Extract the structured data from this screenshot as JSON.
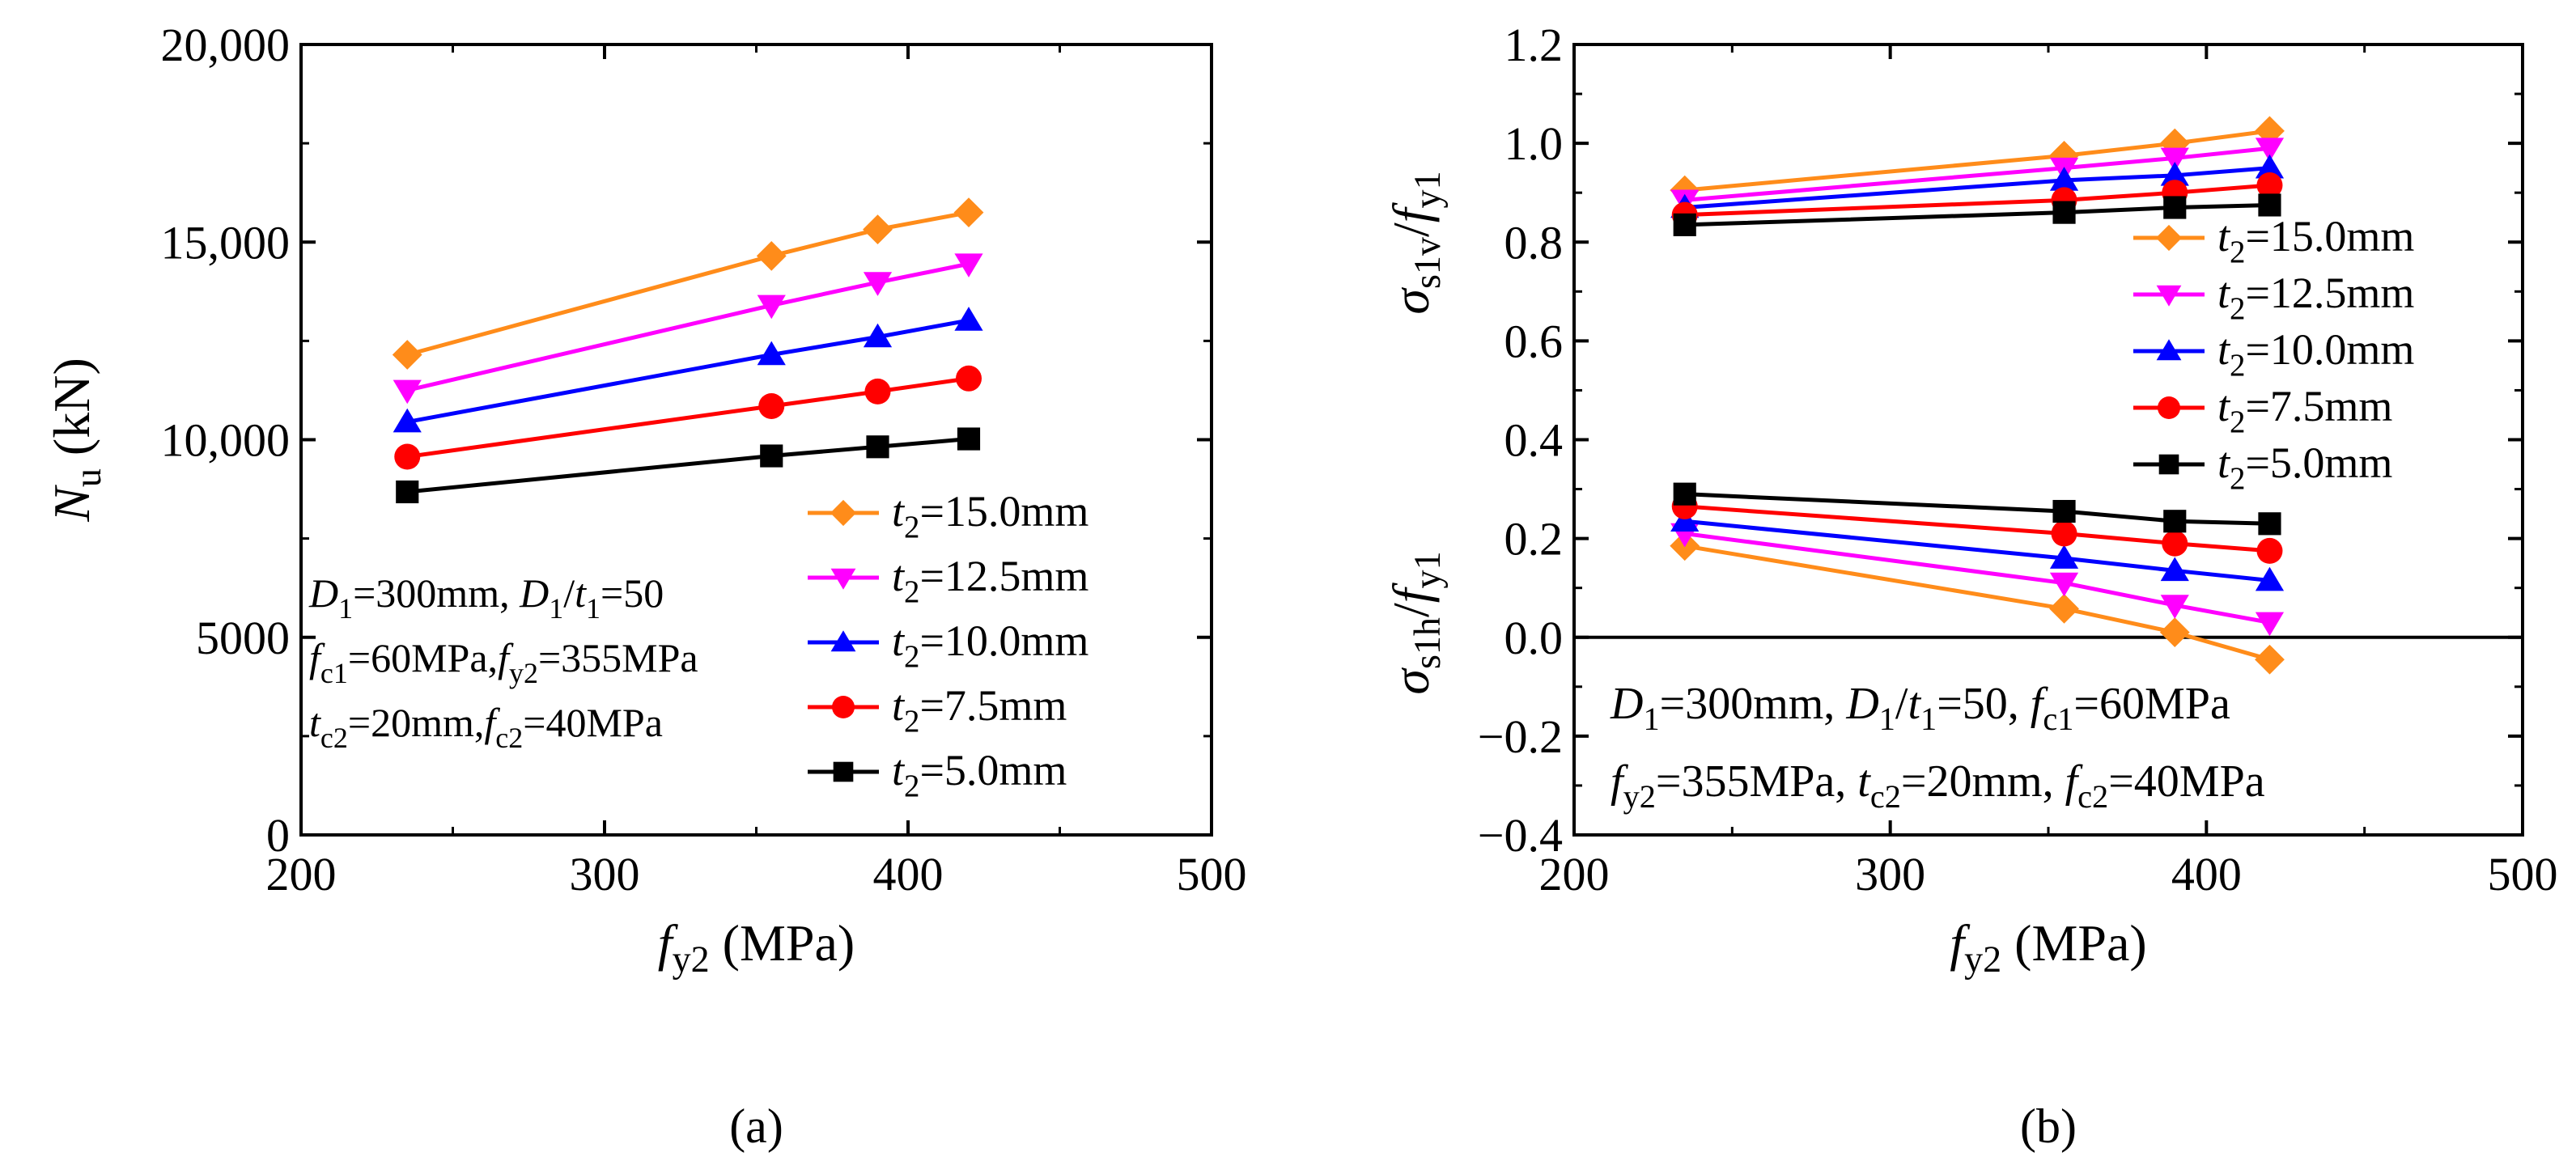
{
  "chart_data": [
    {
      "type": "line",
      "panel_label": "(a)",
      "x": [
        235,
        355,
        390,
        420
      ],
      "xlim": [
        200,
        500
      ],
      "ylim": [
        0,
        20000
      ],
      "x_ticks": [
        "200",
        "300",
        "400",
        "500"
      ],
      "y_ticks": [
        "0",
        "5000",
        "10,000",
        "15,000",
        "20,000"
      ],
      "xlabel": {
        "main": "f",
        "sub": "y2",
        "unit": " (MPa)"
      },
      "ylabel": {
        "main": "N",
        "sub": "u",
        "unit": " (kN)"
      },
      "legend_position": "bottom-right",
      "series": [
        {
          "name": "15.0mm",
          "t_sub": "2",
          "color": "#FF8C1A",
          "marker": "diamond",
          "values": [
            12150,
            14650,
            15320,
            15750
          ]
        },
        {
          "name": "12.5mm",
          "t_sub": "2",
          "color": "#FF00FF",
          "marker": "triangle-down",
          "values": [
            11250,
            13400,
            13980,
            14450
          ]
        },
        {
          "name": "10.0mm",
          "t_sub": "2",
          "color": "#0000FF",
          "marker": "triangle-up",
          "values": [
            10450,
            12150,
            12600,
            13020
          ]
        },
        {
          "name": "7.5mm",
          "t_sub": "2",
          "color": "#FF0000",
          "marker": "circle",
          "values": [
            9570,
            10850,
            11220,
            11550
          ]
        },
        {
          "name": "5.0mm",
          "t_sub": "2",
          "color": "#000000",
          "marker": "square",
          "values": [
            8680,
            9590,
            9820,
            10020
          ]
        }
      ],
      "annotation_lines": [
        [
          {
            "t": "D",
            "it": true
          },
          {
            "t": "1",
            "sub": true
          },
          {
            "t": "=300mm, "
          },
          {
            "t": "D",
            "it": true
          },
          {
            "t": "1",
            "sub": true
          },
          {
            "t": "/"
          },
          {
            "t": "t",
            "it": true
          },
          {
            "t": "1",
            "sub": true
          },
          {
            "t": "=50"
          }
        ],
        [
          {
            "t": "f",
            "it": true
          },
          {
            "t": "c1",
            "sub": true
          },
          {
            "t": "=60MPa,"
          },
          {
            "t": "f",
            "it": true
          },
          {
            "t": "y2",
            "sub": true
          },
          {
            "t": "=355MPa"
          }
        ],
        [
          {
            "t": "t",
            "it": true
          },
          {
            "t": "c2",
            "sub": true
          },
          {
            "t": "=20mm,"
          },
          {
            "t": "f",
            "it": true
          },
          {
            "t": "c2",
            "sub": true
          },
          {
            "t": "=40MPa"
          }
        ]
      ]
    },
    {
      "type": "line",
      "panel_label": "(b)",
      "x": [
        235,
        355,
        390,
        420
      ],
      "xlim": [
        200,
        500
      ],
      "ylim": [
        -0.4,
        1.2
      ],
      "x_ticks": [
        "200",
        "300",
        "400",
        "500"
      ],
      "y_ticks": [
        "−0.4",
        "−0.2",
        "0.0",
        "0.2",
        "0.4",
        "0.6",
        "0.8",
        "1.0",
        "1.2"
      ],
      "zero_line": 0,
      "xlabel": {
        "main": "f",
        "sub": "y2",
        "unit": " (MPa)"
      },
      "ylabel_upper": {
        "main": "σ",
        "sub": "s1v",
        "slash": "/",
        "den": "f",
        "den_sub": "y1"
      },
      "ylabel_lower": {
        "main": "σ",
        "sub": "s1h",
        "slash": "/",
        "den": "f",
        "den_sub": "y1"
      },
      "legend_position": "center-right",
      "series": [
        {
          "name": "15.0mm",
          "t_sub": "2",
          "color": "#FF8C1A",
          "marker": "diamond",
          "values_vertical": [
            0.905,
            0.975,
            1.0,
            1.025
          ],
          "values_hoop": [
            0.185,
            0.058,
            0.01,
            -0.045
          ]
        },
        {
          "name": "12.5mm",
          "t_sub": "2",
          "color": "#FF00FF",
          "marker": "triangle-down",
          "values_vertical": [
            0.885,
            0.95,
            0.97,
            0.99
          ],
          "values_hoop": [
            0.21,
            0.11,
            0.065,
            0.03
          ]
        },
        {
          "name": "10.0mm",
          "t_sub": "2",
          "color": "#0000FF",
          "marker": "triangle-up",
          "values_vertical": [
            0.87,
            0.925,
            0.935,
            0.95
          ],
          "values_hoop": [
            0.235,
            0.16,
            0.135,
            0.115
          ]
        },
        {
          "name": "7.5mm",
          "t_sub": "2",
          "color": "#FF0000",
          "marker": "circle",
          "values_vertical": [
            0.855,
            0.885,
            0.9,
            0.915
          ],
          "values_hoop": [
            0.265,
            0.21,
            0.19,
            0.175
          ]
        },
        {
          "name": "5.0mm",
          "t_sub": "2",
          "color": "#000000",
          "marker": "square",
          "values_vertical": [
            0.835,
            0.86,
            0.87,
            0.875
          ],
          "values_hoop": [
            0.29,
            0.255,
            0.235,
            0.23
          ]
        }
      ],
      "annotation_lines": [
        [
          {
            "t": "D",
            "it": true
          },
          {
            "t": "1",
            "sub": true
          },
          {
            "t": "=300mm, "
          },
          {
            "t": "D",
            "it": true
          },
          {
            "t": "1",
            "sub": true
          },
          {
            "t": "/"
          },
          {
            "t": "t",
            "it": true
          },
          {
            "t": "1",
            "sub": true
          },
          {
            "t": "=50, "
          },
          {
            "t": "f",
            "it": true
          },
          {
            "t": "c1",
            "sub": true
          },
          {
            "t": "=60MPa"
          }
        ],
        [
          {
            "t": "f",
            "it": true
          },
          {
            "t": "y2",
            "sub": true
          },
          {
            "t": "=355MPa, "
          },
          {
            "t": "t",
            "it": true
          },
          {
            "t": "c2",
            "sub": true
          },
          {
            "t": "=20mm, "
          },
          {
            "t": "f",
            "it": true
          },
          {
            "t": "c2",
            "sub": true
          },
          {
            "t": "=40MPa"
          }
        ]
      ]
    }
  ]
}
